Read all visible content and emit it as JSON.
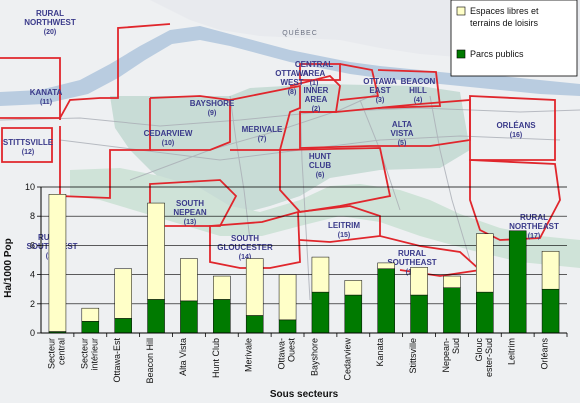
{
  "map": {
    "city_label": "QUÉBEC",
    "areas": [
      {
        "name": "RURAL NORTHWEST",
        "code": "(20)"
      },
      {
        "name": "KANATA",
        "code": "(11)"
      },
      {
        "name": "STITTSVILLE",
        "code": "(12)"
      },
      {
        "name": "BAYSHORE",
        "code": "(9)"
      },
      {
        "name": "CEDARVIEW",
        "code": "(10)"
      },
      {
        "name": "MERIVALE",
        "code": "(7)"
      },
      {
        "name": "OTTAWA WEST",
        "code": "(8)"
      },
      {
        "name": "CENTRAL AREA",
        "code": "(1)"
      },
      {
        "name": "INNER AREA",
        "code": "(2)"
      },
      {
        "name": "OTTAWA EAST",
        "code": "(3)"
      },
      {
        "name": "BEACON HILL",
        "code": "(4)"
      },
      {
        "name": "ALTA VISTA",
        "code": "(5)"
      },
      {
        "name": "ORLÉANS",
        "code": "(16)"
      },
      {
        "name": "HUNT CLUB",
        "code": "(6)"
      },
      {
        "name": "SOUTH NEPEAN",
        "code": "(13)"
      },
      {
        "name": "RURAL SOUTHWEST",
        "code": "(19)"
      },
      {
        "name": "SOUTH GLOUCESTER",
        "code": "(14)"
      },
      {
        "name": "LEITRIM",
        "code": "(15)"
      },
      {
        "name": "RURAL SOUTHEAST",
        "code": "(18)"
      },
      {
        "name": "RURAL NORTHEAST",
        "code": "(17)"
      }
    ]
  },
  "chart_data": {
    "type": "bar",
    "stacked": true,
    "ylabel": "Ha/1000 Pop",
    "xlabel": "Sous secteurs",
    "ylim": [
      0,
      10
    ],
    "yticks": [
      "0",
      "2",
      "4",
      "6",
      "8",
      "10"
    ],
    "grid": true,
    "legend_position": "top-right",
    "categories": [
      "Secteur central",
      "Secteur intérieur",
      "Ottawa-Est",
      "Beacon Hill",
      "Alta Vista",
      "Hunt Club",
      "Merivale",
      "Ottawa-Ouest",
      "Bayshore",
      "Cedarview",
      "Kanata",
      "Stittsville",
      "Nepean-Sud",
      "Gloucester-Sud",
      "Leitrim",
      "Orléans"
    ],
    "category_lines": [
      [
        "Secteur",
        "central"
      ],
      [
        "Secteur",
        "intérieur"
      ],
      [
        "Ottawa-Est"
      ],
      [
        "Beacon Hill"
      ],
      [
        "Alta Vista"
      ],
      [
        "Hunt Club"
      ],
      [
        "Merivale"
      ],
      [
        "Ottawa-",
        "Ouest"
      ],
      [
        "Bayshore"
      ],
      [
        "Cedarview"
      ],
      [
        "Kanata"
      ],
      [
        "Stittsville"
      ],
      [
        "Nepean-",
        "Sud"
      ],
      [
        "Glouc",
        "ester-Sud"
      ],
      [
        "Leitrim"
      ],
      [
        "Orléans"
      ]
    ],
    "series": [
      {
        "name": "Parcs publics",
        "color": "#007a00",
        "values": [
          0.1,
          0.8,
          1.0,
          2.3,
          2.2,
          2.3,
          1.2,
          0.9,
          2.8,
          2.6,
          4.4,
          2.6,
          3.1,
          2.8,
          7.0,
          3.0
        ]
      },
      {
        "name": "Espaces libres et terrains de loisirs",
        "color": "#ffffc8",
        "values": [
          9.4,
          0.9,
          3.4,
          6.6,
          2.9,
          1.6,
          3.9,
          3.1,
          2.4,
          1.0,
          0.4,
          1.9,
          0.8,
          4.0,
          0.0,
          2.6
        ]
      }
    ],
    "legend_lines": [
      [
        "Espaces libres et",
        "terrains de loisirs"
      ],
      [
        "Parcs publics"
      ]
    ]
  }
}
